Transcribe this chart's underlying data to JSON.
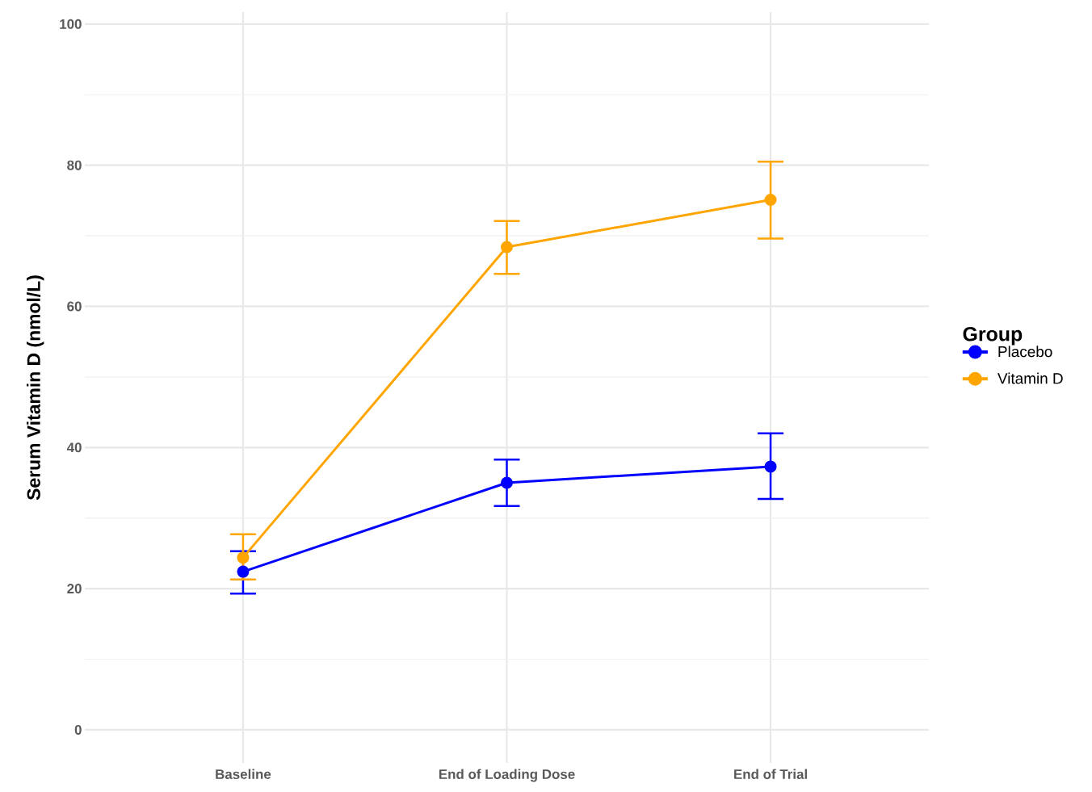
{
  "chart_data": {
    "type": "line",
    "ylabel": "Serum Vitamin D (nmol/L)",
    "legend_title": "Group",
    "categories": [
      "Baseline",
      "End of Loading Dose",
      "End of Trial"
    ],
    "series": [
      {
        "name": "Placebo",
        "color": "#0000ff",
        "values": [
          22.4,
          35.0,
          37.3
        ],
        "errors": [
          [
            19.3,
            25.3
          ],
          [
            31.7,
            38.3
          ],
          [
            32.7,
            42.0
          ]
        ]
      },
      {
        "name": "Vitamin D",
        "color": "#ffa500",
        "values": [
          24.4,
          68.4,
          75.1
        ],
        "errors": [
          [
            21.3,
            27.7
          ],
          [
            64.6,
            72.1
          ],
          [
            69.6,
            80.5
          ]
        ]
      }
    ],
    "ylim": [
      -4.7,
      101.7
    ],
    "yticks": [
      0,
      {
        "value": 10,
        "label": null
      },
      20,
      {
        "value": 30,
        "label": null
      },
      40,
      {
        "value": 50,
        "label": null
      },
      60,
      {
        "value": 70,
        "label": null
      },
      80,
      {
        "value": 90,
        "label": null
      },
      100
    ],
    "grid": true,
    "legend": "right",
    "marker": "circle",
    "line_style": "solid"
  }
}
